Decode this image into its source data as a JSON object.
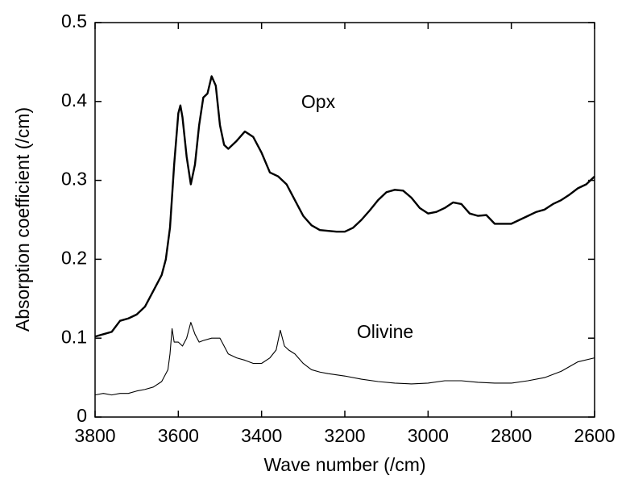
{
  "chart_data": {
    "type": "line",
    "xlabel": "Wave number (/cm)",
    "ylabel": "Absorption coefficient (/cm)",
    "xlim": [
      3800,
      2600
    ],
    "xticks": [
      3800,
      3600,
      3400,
      3200,
      3000,
      2800,
      2600
    ],
    "ylim": [
      0,
      0.5
    ],
    "yticks": [
      0,
      0.1,
      0.2,
      0.3,
      0.4,
      0.5
    ],
    "series": [
      {
        "name": "Opx",
        "color": "#000000",
        "width": 2.4,
        "x": [
          3800,
          3780,
          3760,
          3740,
          3720,
          3700,
          3680,
          3660,
          3640,
          3630,
          3620,
          3610,
          3600,
          3595,
          3590,
          3580,
          3570,
          3560,
          3550,
          3540,
          3530,
          3520,
          3510,
          3500,
          3490,
          3480,
          3470,
          3460,
          3440,
          3420,
          3400,
          3380,
          3360,
          3340,
          3320,
          3300,
          3280,
          3260,
          3240,
          3220,
          3200,
          3180,
          3160,
          3140,
          3120,
          3100,
          3080,
          3060,
          3040,
          3020,
          3000,
          2980,
          2960,
          2940,
          2920,
          2900,
          2880,
          2860,
          2840,
          2820,
          2800,
          2780,
          2760,
          2740,
          2720,
          2700,
          2680,
          2660,
          2640,
          2620,
          2600
        ],
        "values": [
          0.102,
          0.105,
          0.108,
          0.122,
          0.125,
          0.13,
          0.14,
          0.16,
          0.18,
          0.2,
          0.24,
          0.32,
          0.385,
          0.395,
          0.38,
          0.33,
          0.295,
          0.32,
          0.37,
          0.405,
          0.41,
          0.432,
          0.42,
          0.37,
          0.345,
          0.34,
          0.345,
          0.35,
          0.362,
          0.355,
          0.335,
          0.31,
          0.305,
          0.295,
          0.275,
          0.255,
          0.243,
          0.237,
          0.236,
          0.235,
          0.235,
          0.24,
          0.25,
          0.262,
          0.275,
          0.285,
          0.288,
          0.287,
          0.278,
          0.265,
          0.258,
          0.26,
          0.265,
          0.272,
          0.27,
          0.258,
          0.255,
          0.256,
          0.245,
          0.245,
          0.245,
          0.25,
          0.255,
          0.26,
          0.263,
          0.27,
          0.275,
          0.282,
          0.29,
          0.295,
          0.305
        ]
      },
      {
        "name": "Olivine",
        "color": "#000000",
        "width": 1.1,
        "x": [
          3800,
          3780,
          3760,
          3740,
          3720,
          3700,
          3680,
          3660,
          3640,
          3625,
          3620,
          3615,
          3610,
          3600,
          3590,
          3580,
          3570,
          3560,
          3550,
          3540,
          3520,
          3500,
          3490,
          3480,
          3460,
          3440,
          3420,
          3400,
          3380,
          3365,
          3355,
          3345,
          3335,
          3320,
          3300,
          3280,
          3260,
          3240,
          3200,
          3160,
          3120,
          3080,
          3040,
          3000,
          2960,
          2920,
          2880,
          2840,
          2800,
          2760,
          2720,
          2680,
          2640,
          2600
        ],
        "values": [
          0.028,
          0.03,
          0.028,
          0.03,
          0.03,
          0.033,
          0.035,
          0.038,
          0.045,
          0.06,
          0.08,
          0.112,
          0.095,
          0.095,
          0.09,
          0.1,
          0.12,
          0.105,
          0.095,
          0.097,
          0.1,
          0.1,
          0.09,
          0.08,
          0.075,
          0.072,
          0.068,
          0.068,
          0.075,
          0.085,
          0.11,
          0.09,
          0.085,
          0.08,
          0.068,
          0.06,
          0.057,
          0.055,
          0.052,
          0.048,
          0.045,
          0.043,
          0.042,
          0.043,
          0.046,
          0.046,
          0.044,
          0.043,
          0.043,
          0.046,
          0.05,
          0.058,
          0.07,
          0.075
        ]
      }
    ]
  }
}
